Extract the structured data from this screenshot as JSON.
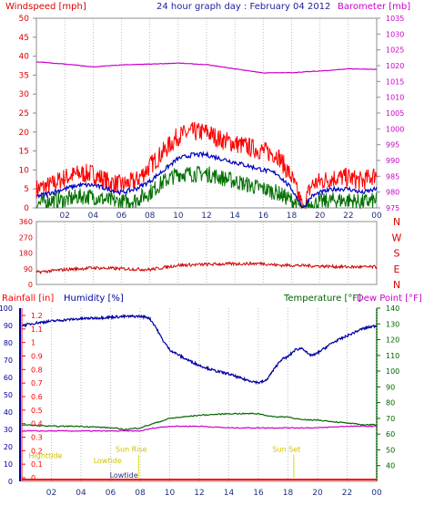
{
  "colors": {
    "wind": "#e00000",
    "gust": "#ff0000",
    "wind_avg": "#0000c0",
    "wind_min": "#007000",
    "baro": "#cc00cc",
    "dir": "#cc0000",
    "humid": "#0000a0",
    "temp": "#006400",
    "dew": "#cc00cc",
    "rain": "#ff0000",
    "tide": "#e0e000",
    "frame": "#8c8c8c",
    "dash": "#b0b0b0"
  },
  "chart_data": [
    {
      "type": "line",
      "title": "24 hour graph day : February 04 2012",
      "left_label": "Windspeed [mph]",
      "right_label": "Barometer [mb]",
      "left_ticks": [
        0,
        5,
        10,
        15,
        20,
        25,
        30,
        35,
        40,
        45,
        50
      ],
      "right_ticks": [
        975,
        980,
        985,
        990,
        995,
        1000,
        1005,
        1010,
        1015,
        1020,
        1025,
        1030,
        1035
      ],
      "x_ticks": [
        "02",
        "04",
        "06",
        "08",
        "10",
        "12",
        "14",
        "16",
        "18",
        "20",
        "22",
        "00"
      ],
      "left_range": [
        0,
        50
      ],
      "right_range": [
        975,
        1035
      ],
      "x_range": [
        0,
        24
      ],
      "series": [
        {
          "role": "gust",
          "points": [
            [
              0,
              5
            ],
            [
              1,
              6
            ],
            [
              2,
              8
            ],
            [
              3,
              9
            ],
            [
              4,
              9
            ],
            [
              5,
              7
            ],
            [
              6,
              6
            ],
            [
              7,
              7
            ],
            [
              8,
              11
            ],
            [
              9,
              15
            ],
            [
              10,
              19
            ],
            [
              11,
              20
            ],
            [
              12,
              20
            ],
            [
              13,
              18
            ],
            [
              14,
              17
            ],
            [
              15,
              16
            ],
            [
              16,
              15
            ],
            [
              17,
              14
            ],
            [
              18,
              8
            ],
            [
              18.8,
              0
            ],
            [
              19.4,
              6
            ],
            [
              20,
              7
            ],
            [
              21,
              8
            ],
            [
              22,
              8
            ],
            [
              23,
              7
            ],
            [
              24,
              9
            ]
          ]
        },
        {
          "role": "wind_avg",
          "points": [
            [
              0,
              3
            ],
            [
              1,
              4
            ],
            [
              2,
              5
            ],
            [
              3,
              6
            ],
            [
              4,
              6
            ],
            [
              5,
              5
            ],
            [
              6,
              4
            ],
            [
              7,
              5
            ],
            [
              8,
              7
            ],
            [
              9,
              10
            ],
            [
              10,
              13
            ],
            [
              11,
              14
            ],
            [
              12,
              14
            ],
            [
              13,
              13
            ],
            [
              14,
              12
            ],
            [
              15,
              11
            ],
            [
              16,
              10
            ],
            [
              17,
              9
            ],
            [
              18,
              5
            ],
            [
              18.8,
              0
            ],
            [
              19.4,
              3
            ],
            [
              20,
              4
            ],
            [
              21,
              5
            ],
            [
              22,
              5
            ],
            [
              23,
              4
            ],
            [
              24,
              5
            ]
          ]
        },
        {
          "role": "wind_min",
          "points": [
            [
              0,
              1
            ],
            [
              1,
              2
            ],
            [
              2,
              2
            ],
            [
              3,
              3
            ],
            [
              4,
              3
            ],
            [
              5,
              2
            ],
            [
              6,
              1.5
            ],
            [
              7,
              2
            ],
            [
              8,
              4
            ],
            [
              9,
              7
            ],
            [
              10,
              9
            ],
            [
              11,
              9
            ],
            [
              12,
              9
            ],
            [
              13,
              8
            ],
            [
              14,
              7
            ],
            [
              15,
              6
            ],
            [
              16,
              5
            ],
            [
              17,
              4
            ],
            [
              18,
              2
            ],
            [
              18.8,
              0
            ],
            [
              19.4,
              1
            ],
            [
              20,
              1.5
            ],
            [
              21,
              2
            ],
            [
              22,
              2
            ],
            [
              23,
              1.5
            ],
            [
              24,
              2
            ]
          ]
        },
        {
          "role": "baro",
          "points": [
            [
              0,
              1021.2
            ],
            [
              2,
              1020.5
            ],
            [
              4,
              1019.6
            ],
            [
              6,
              1020.2
            ],
            [
              8,
              1020.5
            ],
            [
              10,
              1020.8
            ],
            [
              12,
              1020.3
            ],
            [
              14,
              1019
            ],
            [
              16,
              1017.7
            ],
            [
              18,
              1017.8
            ],
            [
              20,
              1018.3
            ],
            [
              22,
              1019
            ],
            [
              24,
              1018.8
            ]
          ]
        }
      ]
    },
    {
      "type": "line",
      "left_ticks": [
        0,
        90,
        180,
        270,
        360
      ],
      "compass_labels": [
        "N",
        "W",
        "S",
        "E",
        "N"
      ],
      "left_range": [
        0,
        360
      ],
      "x_range": [
        0,
        24
      ],
      "series": [
        {
          "role": "dir",
          "points": [
            [
              0,
              70
            ],
            [
              2,
              85
            ],
            [
              4,
              95
            ],
            [
              6,
              90
            ],
            [
              8,
              85
            ],
            [
              10,
              110
            ],
            [
              12,
              115
            ],
            [
              14,
              118
            ],
            [
              16,
              120
            ],
            [
              17,
              110
            ],
            [
              18,
              110
            ],
            [
              20,
              105
            ],
            [
              22,
              100
            ],
            [
              24,
              100
            ]
          ]
        }
      ]
    },
    {
      "type": "line",
      "left_label_rain": "Rainfall [in]",
      "left_label_humid": "Humidity [%]",
      "right_label_temp": "Temperature [°F]",
      "right_label_dew": "Dew Point [°F]",
      "rain_ticks": [
        "0",
        "0.1",
        "0.2",
        "0.3",
        "0.4",
        "0.5",
        "0.6",
        "0.7",
        "0.8",
        "0.9",
        "1",
        "1.1",
        "1.2"
      ],
      "humid_ticks": [
        0,
        10,
        20,
        30,
        40,
        50,
        60,
        70,
        80,
        90,
        100
      ],
      "temp_ticks": [
        40,
        50,
        60,
        70,
        80,
        90,
        100,
        110,
        120,
        130,
        140
      ],
      "x_ticks": [
        "02",
        "04",
        "06",
        "08",
        "10",
        "12",
        "14",
        "16",
        "18",
        "20",
        "22",
        "00"
      ],
      "humid_range": [
        0,
        100
      ],
      "temp_range": [
        30,
        140
      ],
      "x_range": [
        0,
        24
      ],
      "series": [
        {
          "role": "humid",
          "points": [
            [
              0,
              90
            ],
            [
              1,
              91.5
            ],
            [
              2,
              92.5
            ],
            [
              3,
              93.3
            ],
            [
              4,
              93.9
            ],
            [
              5,
              94.3
            ],
            [
              6,
              94.8
            ],
            [
              7,
              95.2
            ],
            [
              8,
              95.3
            ],
            [
              8.6,
              94.5
            ],
            [
              9,
              90
            ],
            [
              9.5,
              82
            ],
            [
              10,
              76
            ],
            [
              11,
              71
            ],
            [
              12,
              67
            ],
            [
              13,
              64
            ],
            [
              14,
              62
            ],
            [
              15,
              59
            ],
            [
              16,
              57
            ],
            [
              16.5,
              58
            ],
            [
              17,
              64
            ],
            [
              17.5,
              70
            ],
            [
              18,
              72
            ],
            [
              18.5,
              76
            ],
            [
              19,
              77
            ],
            [
              19.4,
              73
            ],
            [
              19.8,
              73
            ],
            [
              20.5,
              77
            ],
            [
              21,
              80
            ],
            [
              22,
              84
            ],
            [
              23,
              88
            ],
            [
              24,
              90
            ]
          ]
        },
        {
          "role": "temp",
          "points": [
            [
              0,
              66
            ],
            [
              2,
              65
            ],
            [
              4,
              65
            ],
            [
              6,
              64
            ],
            [
              7,
              63
            ],
            [
              8,
              64
            ],
            [
              9,
              67
            ],
            [
              10,
              70
            ],
            [
              11,
              71
            ],
            [
              12,
              72
            ],
            [
              14,
              73
            ],
            [
              16,
              73
            ],
            [
              17,
              71
            ],
            [
              18,
              71
            ],
            [
              19,
              69
            ],
            [
              20,
              69
            ],
            [
              21,
              68
            ],
            [
              22,
              67
            ],
            [
              23,
              66
            ],
            [
              24,
              66
            ]
          ]
        },
        {
          "role": "dew",
          "points": [
            [
              0,
              62
            ],
            [
              2,
              62
            ],
            [
              4,
              62
            ],
            [
              6,
              62
            ],
            [
              7,
              62
            ],
            [
              8,
              62
            ],
            [
              9,
              64
            ],
            [
              10,
              65
            ],
            [
              12,
              65
            ],
            [
              14,
              64
            ],
            [
              16,
              64
            ],
            [
              18,
              64
            ],
            [
              20,
              64
            ],
            [
              22,
              65
            ],
            [
              24,
              65
            ]
          ]
        },
        {
          "role": "rain",
          "points": [
            [
              0,
              0
            ],
            [
              24,
              0
            ]
          ]
        }
      ],
      "markers": [
        {
          "label": "Highttide",
          "x": 1.6,
          "y_frac": 0.27
        },
        {
          "label": "Lowtide",
          "x": 5.8,
          "y_frac": 0.21
        },
        {
          "label": "Lowtide",
          "x": 6.9,
          "y_frac": 0.04
        },
        {
          "label": "Sun Rise",
          "x": 7.4,
          "y_frac": 0.34
        },
        {
          "label": "Sun Set",
          "x": 17.9,
          "y_frac": 0.34
        }
      ]
    }
  ]
}
